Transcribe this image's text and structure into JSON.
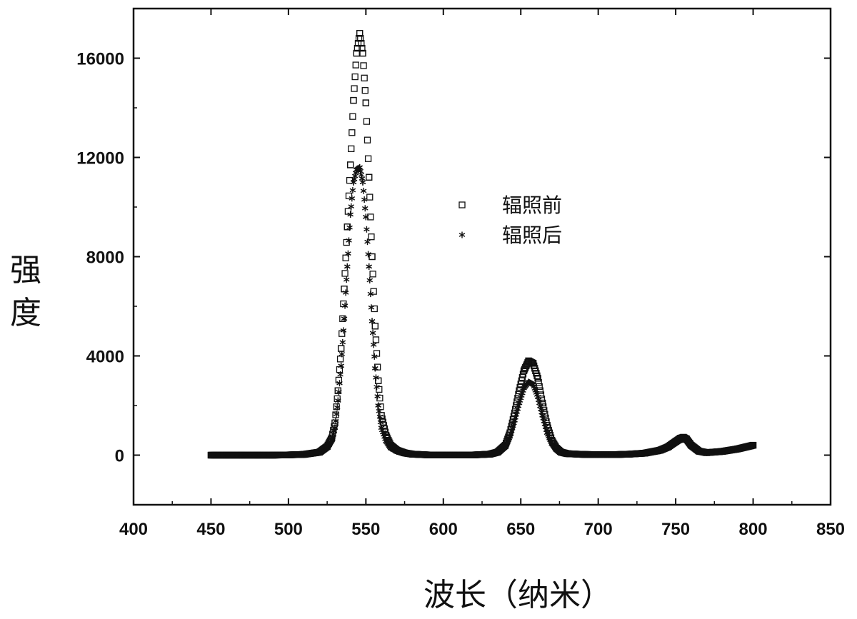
{
  "chart_data": {
    "type": "scatter",
    "xlabel": "波长（纳米）",
    "ylabel": "强度",
    "xlim": [
      400,
      850
    ],
    "ylim": [
      -2000,
      18000
    ],
    "xticks": [
      400,
      450,
      500,
      550,
      600,
      650,
      700,
      750,
      800,
      850
    ],
    "yticks": [
      0,
      4000,
      8000,
      12000,
      16000
    ],
    "legend_position": "upper-right (inside plot)",
    "grid": false,
    "series": [
      {
        "name": "辐照前",
        "marker": "open-square",
        "x": [
          450,
          460,
          470,
          480,
          490,
          500,
          510,
          520,
          525,
          528,
          530,
          532,
          534,
          536,
          538,
          540,
          542,
          544,
          546,
          548,
          550,
          552,
          554,
          556,
          558,
          560,
          563,
          566,
          570,
          575,
          580,
          590,
          600,
          610,
          620,
          630,
          635,
          640,
          643,
          646,
          649,
          652,
          655,
          658,
          661,
          664,
          667,
          670,
          673,
          676,
          680,
          690,
          700,
          710,
          720,
          730,
          740,
          745,
          750,
          753,
          755,
          757,
          760,
          765,
          770,
          780,
          790,
          800
        ],
        "y": [
          0,
          0,
          0,
          0,
          0,
          10,
          30,
          120,
          350,
          700,
          1300,
          2600,
          4300,
          6700,
          9200,
          11700,
          14300,
          16200,
          17000,
          16200,
          14200,
          11200,
          8000,
          5200,
          3000,
          1600,
          800,
          400,
          200,
          90,
          40,
          10,
          5,
          5,
          10,
          40,
          120,
          400,
          900,
          1700,
          2600,
          3400,
          3800,
          3700,
          3100,
          2100,
          1200,
          600,
          280,
          120,
          60,
          30,
          20,
          20,
          40,
          80,
          200,
          330,
          550,
          680,
          720,
          650,
          400,
          160,
          100,
          150,
          250,
          400
        ]
      },
      {
        "name": "辐照后",
        "marker": "asterisk",
        "x": [
          450,
          460,
          470,
          480,
          490,
          500,
          510,
          520,
          525,
          528,
          530,
          532,
          534,
          536,
          538,
          540,
          542,
          544,
          546,
          548,
          550,
          552,
          554,
          556,
          558,
          560,
          563,
          566,
          570,
          575,
          580,
          590,
          600,
          610,
          620,
          630,
          635,
          640,
          643,
          646,
          649,
          652,
          655,
          658,
          661,
          664,
          667,
          670,
          673,
          676,
          680,
          690,
          700,
          710,
          720,
          730,
          740,
          745,
          750,
          753,
          755,
          757,
          760,
          765,
          770,
          780,
          790,
          800
        ],
        "y": [
          0,
          0,
          0,
          0,
          0,
          8,
          25,
          100,
          300,
          600,
          1100,
          2200,
          3600,
          5500,
          7600,
          9700,
          11000,
          11500,
          11600,
          11000,
          9600,
          7600,
          5400,
          3500,
          2000,
          1100,
          560,
          280,
          150,
          70,
          30,
          8,
          4,
          4,
          8,
          30,
          100,
          330,
          750,
          1400,
          2100,
          2700,
          2950,
          2850,
          2350,
          1600,
          900,
          460,
          220,
          100,
          50,
          25,
          18,
          18,
          35,
          70,
          170,
          290,
          480,
          600,
          640,
          580,
          360,
          150,
          95,
          140,
          230,
          370
        ]
      }
    ]
  }
}
